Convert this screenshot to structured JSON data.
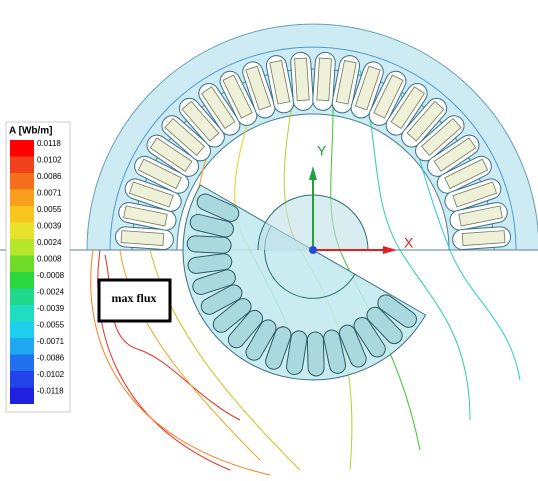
{
  "legend": {
    "title": "A [Wb/m]",
    "labels": [
      "0.0118",
      "0.0102",
      "0.0086",
      "0.0071",
      "0.0055",
      "0.0039",
      "0.0024",
      "0.0008",
      "-0.0008",
      "-0.0024",
      "-0.0039",
      "-0.0055",
      "-0.0071",
      "-0.0086",
      "-0.0102",
      "-0.0118"
    ]
  },
  "annotation": "max flux",
  "axes": {
    "x": "X",
    "y": "Y"
  }
}
